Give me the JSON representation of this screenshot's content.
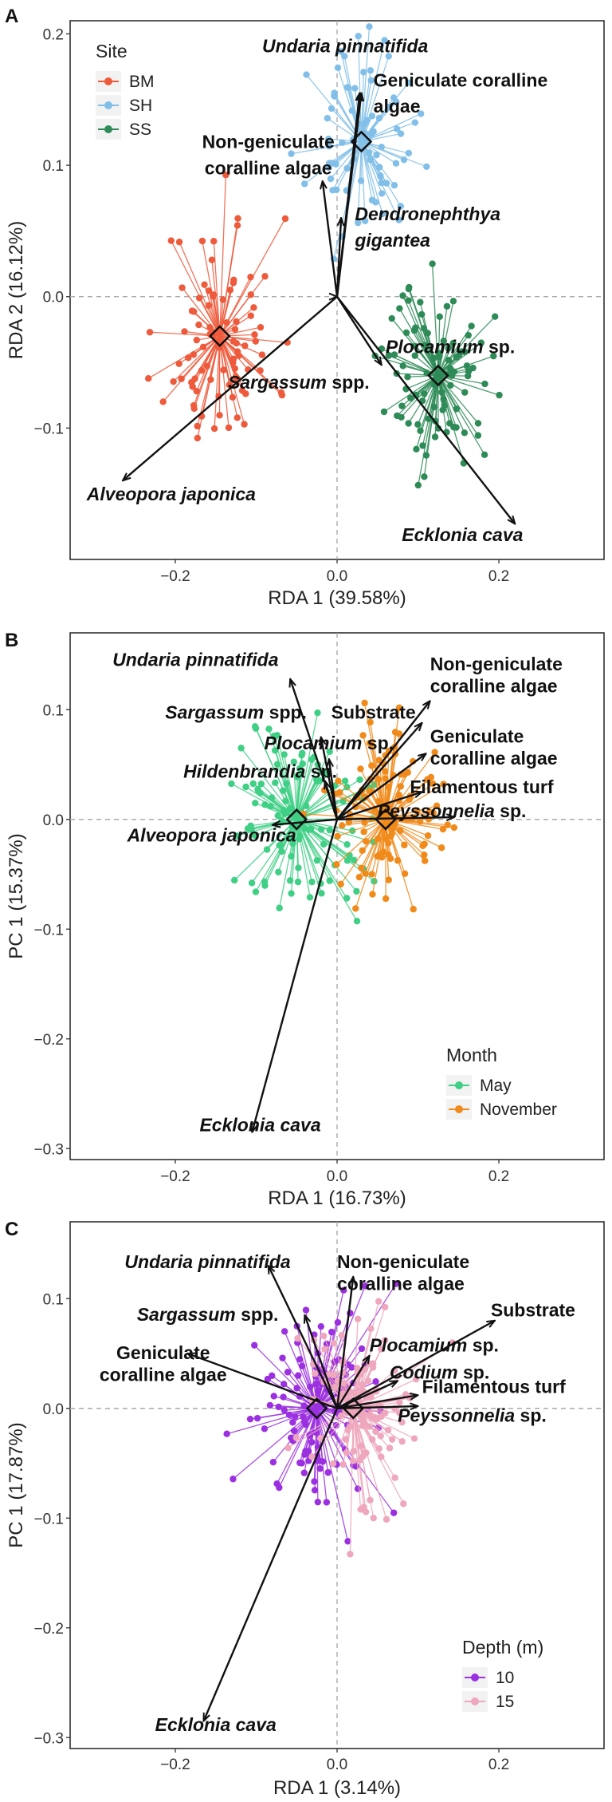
{
  "figure": {
    "panel_labels": [
      "A",
      "B",
      "C"
    ]
  },
  "chart_data": [
    {
      "panel": "A",
      "type": "scatter",
      "subtype": "RDA biplot with site spiders",
      "xlabel": "RDA 1 (39.58%)",
      "ylabel": "RDA 2 (16.12%)",
      "xlim": [
        -0.33,
        0.33
      ],
      "ylim": [
        -0.2,
        0.21
      ],
      "xticks": [
        -0.2,
        0.0,
        0.2
      ],
      "yticks": [
        -0.1,
        0.0,
        0.1,
        0.2
      ],
      "xtick_labels": [
        "−0.2",
        "0.0",
        "0.2"
      ],
      "ytick_labels": [
        "−0.1",
        "0.0",
        "0.1",
        "0.2"
      ],
      "legend": {
        "title": "Site",
        "position": "top-left",
        "entries": [
          "BM",
          "SH",
          "SS"
        ],
        "colors": [
          "#ee5a3c",
          "#82bfe8",
          "#2e8b57"
        ]
      },
      "groups": [
        {
          "name": "BM",
          "color": "#ee5a3c",
          "centroid": [
            -0.145,
            -0.03
          ],
          "spread": [
            0.035,
            0.045
          ],
          "n": 90,
          "seed": 11
        },
        {
          "name": "SH",
          "color": "#82bfe8",
          "centroid": [
            0.03,
            0.118
          ],
          "spread": [
            0.032,
            0.035
          ],
          "n": 80,
          "seed": 23
        },
        {
          "name": "SS",
          "color": "#2e8b57",
          "centroid": [
            0.125,
            -0.06
          ],
          "spread": [
            0.033,
            0.035
          ],
          "n": 95,
          "seed": 37
        }
      ],
      "arrows": [
        {
          "segments": [
            {
              "text": "Undaria pinnatifida",
              "italic": true
            }
          ],
          "xy": [
            0.028,
            0.155
          ],
          "label_xy": [
            0.01,
            0.186
          ],
          "anchor": "middle"
        },
        {
          "segments": [
            {
              "text": "Geniculate coralline",
              "italic": false
            }
          ],
          "xy": [
            0.03,
            0.155
          ],
          "label_xy": [
            0.045,
            0.16
          ],
          "anchor": "start"
        },
        {
          "segments": [
            {
              "text": "algae",
              "italic": false
            }
          ],
          "xy": null,
          "label_xy": [
            0.045,
            0.14
          ],
          "anchor": "start"
        },
        {
          "segments": [
            {
              "text": "Non-geniculate",
              "italic": false
            }
          ],
          "xy": [
            -0.018,
            0.088
          ],
          "label_xy": [
            -0.085,
            0.113
          ],
          "anchor": "middle"
        },
        {
          "segments": [
            {
              "text": "coralline algae",
              "italic": false
            }
          ],
          "xy": null,
          "label_xy": [
            -0.085,
            0.093
          ],
          "anchor": "middle"
        },
        {
          "segments": [
            {
              "text": "Dendronephthya",
              "italic": true
            }
          ],
          "xy": [
            0.005,
            0.06
          ],
          "label_xy": [
            0.022,
            0.058
          ],
          "anchor": "start"
        },
        {
          "segments": [
            {
              "text": "gigantea",
              "italic": true
            }
          ],
          "xy": null,
          "label_xy": [
            0.022,
            0.038
          ],
          "anchor": "start"
        },
        {
          "segments": [
            {
              "text": "Plocamium",
              "italic": true
            },
            {
              "text": " sp.",
              "italic": false
            }
          ],
          "xy": [
            0.055,
            -0.052
          ],
          "label_xy": [
            0.06,
            -0.043
          ],
          "anchor": "start"
        },
        {
          "segments": [
            {
              "text": "Sargassum",
              "italic": true
            },
            {
              "text": " spp.",
              "italic": false
            }
          ],
          "xy": [
            0.0,
            0.0
          ],
          "label_xy": [
            -0.135,
            -0.07
          ],
          "anchor": "start"
        },
        {
          "segments": [
            {
              "text": "Alveopora japonica",
              "italic": true
            }
          ],
          "xy": [
            -0.265,
            -0.14
          ],
          "label_xy": [
            -0.205,
            -0.155
          ],
          "anchor": "middle"
        },
        {
          "segments": [
            {
              "text": "Ecklonia cava",
              "italic": true
            }
          ],
          "xy": [
            0.22,
            -0.173
          ],
          "label_xy": [
            0.155,
            -0.186
          ],
          "anchor": "middle"
        }
      ]
    },
    {
      "panel": "B",
      "type": "scatter",
      "subtype": "RDA biplot with month spiders",
      "xlabel": "RDA 1 (16.73%)",
      "ylabel": "PC 1 (15.37%)",
      "xlim": [
        -0.33,
        0.33
      ],
      "ylim": [
        -0.31,
        0.17
      ],
      "xticks": [
        -0.2,
        0.0,
        0.2
      ],
      "yticks": [
        -0.3,
        -0.2,
        -0.1,
        0.0,
        0.1
      ],
      "xtick_labels": [
        "−0.2",
        "0.0",
        "0.2"
      ],
      "ytick_labels": [
        "−0.3",
        "−0.2",
        "−0.1",
        "0.0",
        "0.1"
      ],
      "legend": {
        "title": "Month",
        "position": "bottom-right",
        "entries": [
          "May",
          "November"
        ],
        "colors": [
          "#3fcf85",
          "#f08a1a"
        ]
      },
      "groups": [
        {
          "name": "May",
          "color": "#3fcf85",
          "centroid": [
            -0.05,
            0.0
          ],
          "spread": [
            0.048,
            0.045
          ],
          "n": 110,
          "seed": 51
        },
        {
          "name": "November",
          "color": "#f08a1a",
          "centroid": [
            0.06,
            0.0
          ],
          "spread": [
            0.035,
            0.04
          ],
          "n": 110,
          "seed": 67
        }
      ],
      "arrows": [
        {
          "segments": [
            {
              "text": "Undaria pinnatifida",
              "italic": true
            }
          ],
          "xy": [
            -0.058,
            0.128
          ],
          "label_xy": [
            -0.175,
            0.14
          ],
          "anchor": "middle"
        },
        {
          "segments": [
            {
              "text": "Non-geniculate",
              "italic": false
            }
          ],
          "xy": [
            0.115,
            0.108
          ],
          "label_xy": [
            0.115,
            0.136
          ],
          "anchor": "start"
        },
        {
          "segments": [
            {
              "text": "coralline algae",
              "italic": false
            }
          ],
          "xy": null,
          "label_xy": [
            0.115,
            0.116
          ],
          "anchor": "start"
        },
        {
          "segments": [
            {
              "text": "Sargassum",
              "italic": true
            },
            {
              "text": " spp.",
              "italic": false
            }
          ],
          "xy": [
            -0.02,
            0.075
          ],
          "label_xy": [
            -0.125,
            0.092
          ],
          "anchor": "middle"
        },
        {
          "segments": [
            {
              "text": "Substrate",
              "italic": false
            }
          ],
          "xy": [
            0.105,
            0.088
          ],
          "label_xy": [
            0.045,
            0.092
          ],
          "anchor": "middle"
        },
        {
          "segments": [
            {
              "text": "Plocamium",
              "italic": true
            },
            {
              "text": " sp.",
              "italic": false
            }
          ],
          "xy": [
            -0.01,
            0.055
          ],
          "label_xy": [
            -0.01,
            0.064
          ],
          "anchor": "middle"
        },
        {
          "segments": [
            {
              "text": "Geniculate",
              "italic": false
            }
          ],
          "xy": [
            0.11,
            0.06
          ],
          "label_xy": [
            0.115,
            0.07
          ],
          "anchor": "start"
        },
        {
          "segments": [
            {
              "text": "coralline algae",
              "italic": false
            }
          ],
          "xy": null,
          "label_xy": [
            0.115,
            0.05
          ],
          "anchor": "start"
        },
        {
          "segments": [
            {
              "text": "Hildenbrandia",
              "italic": true
            },
            {
              "text": " sp.",
              "italic": false
            }
          ],
          "xy": [
            -0.015,
            0.035
          ],
          "label_xy": [
            -0.095,
            0.038
          ],
          "anchor": "middle"
        },
        {
          "segments": [
            {
              "text": "Filamentous turf",
              "italic": false
            }
          ],
          "xy": [
            0.105,
            0.025
          ],
          "label_xy": [
            0.09,
            0.024
          ],
          "anchor": "start"
        },
        {
          "segments": [
            {
              "text": "Alveopora japonica",
              "italic": true
            }
          ],
          "xy": [
            -0.08,
            -0.005
          ],
          "label_xy": [
            -0.155,
            -0.02
          ],
          "anchor": "middle"
        },
        {
          "segments": [
            {
              "text": "Peyssonnelia",
              "italic": true
            },
            {
              "text": " sp.",
              "italic": false
            }
          ],
          "xy": [
            0.145,
            0.002
          ],
          "label_xy": [
            0.05,
            0.002
          ],
          "anchor": "start"
        },
        {
          "segments": [
            {
              "text": "Ecklonia cava",
              "italic": true
            }
          ],
          "xy": [
            -0.105,
            -0.285
          ],
          "label_xy": [
            -0.095,
            -0.284
          ],
          "anchor": "middle"
        }
      ]
    },
    {
      "panel": "C",
      "type": "scatter",
      "subtype": "RDA biplot with depth spiders",
      "xlabel": "RDA 1 (3.14%)",
      "ylabel": "PC 1 (17.87%)",
      "xlim": [
        -0.33,
        0.33
      ],
      "ylim": [
        -0.31,
        0.17
      ],
      "xticks": [
        -0.2,
        0.0,
        0.2
      ],
      "yticks": [
        -0.3,
        -0.2,
        -0.1,
        0.0,
        0.1
      ],
      "xtick_labels": [
        "−0.2",
        "0.0",
        "0.2"
      ],
      "ytick_labels": [
        "−0.3",
        "−0.2",
        "−0.1",
        "0.0",
        "0.1"
      ],
      "legend": {
        "title": "Depth (m)",
        "position": "bottom-right",
        "entries": [
          "10",
          "15"
        ],
        "colors": [
          "#9b30e0",
          "#eea7bc"
        ]
      },
      "groups": [
        {
          "name": "10",
          "color": "#9b30e0",
          "centroid": [
            -0.025,
            0.0
          ],
          "spread": [
            0.04,
            0.045
          ],
          "n": 120,
          "seed": 83
        },
        {
          "name": "15",
          "color": "#eea7bc",
          "centroid": [
            0.02,
            0.0
          ],
          "spread": [
            0.04,
            0.045
          ],
          "n": 120,
          "seed": 97
        }
      ],
      "arrows": [
        {
          "segments": [
            {
              "text": "Undaria pinnatifida",
              "italic": true
            }
          ],
          "xy": [
            -0.085,
            0.13
          ],
          "label_xy": [
            -0.16,
            0.128
          ],
          "anchor": "middle"
        },
        {
          "segments": [
            {
              "text": "Non-geniculate",
              "italic": false
            }
          ],
          "xy": [
            0.02,
            0.12
          ],
          "label_xy": [
            0.0,
            0.128
          ],
          "anchor": "start"
        },
        {
          "segments": [
            {
              "text": "coralline algae",
              "italic": false
            }
          ],
          "xy": null,
          "label_xy": [
            0.0,
            0.108
          ],
          "anchor": "start"
        },
        {
          "segments": [
            {
              "text": "Sargassum",
              "italic": true
            },
            {
              "text": " spp.",
              "italic": false
            }
          ],
          "xy": [
            -0.04,
            0.085
          ],
          "label_xy": [
            -0.16,
            0.08
          ],
          "anchor": "middle"
        },
        {
          "segments": [
            {
              "text": "Substrate",
              "italic": false
            }
          ],
          "xy": [
            0.195,
            0.08
          ],
          "label_xy": [
            0.19,
            0.084
          ],
          "anchor": "start"
        },
        {
          "segments": [
            {
              "text": "Plocamium",
              "italic": true
            },
            {
              "text": " sp.",
              "italic": false
            }
          ],
          "xy": [
            0.04,
            0.048
          ],
          "label_xy": [
            0.04,
            0.052
          ],
          "anchor": "start"
        },
        {
          "segments": [
            {
              "text": "Geniculate",
              "italic": false
            }
          ],
          "xy": [
            -0.185,
            0.05
          ],
          "label_xy": [
            -0.215,
            0.045
          ],
          "anchor": "middle"
        },
        {
          "segments": [
            {
              "text": "coralline algae",
              "italic": false
            }
          ],
          "xy": null,
          "label_xy": [
            -0.215,
            0.025
          ],
          "anchor": "middle"
        },
        {
          "segments": [
            {
              "text": "Codium",
              "italic": true
            },
            {
              "text": " sp.",
              "italic": false
            }
          ],
          "xy": [
            0.075,
            0.025
          ],
          "label_xy": [
            0.065,
            0.027
          ],
          "anchor": "start"
        },
        {
          "segments": [
            {
              "text": "Filamentous turf",
              "italic": false
            }
          ],
          "xy": [
            0.1,
            0.012
          ],
          "label_xy": [
            0.105,
            0.014
          ],
          "anchor": "start"
        },
        {
          "segments": [
            {
              "text": "Peyssonnelia",
              "italic": true
            },
            {
              "text": " sp.",
              "italic": false
            }
          ],
          "xy": [
            0.1,
            0.002
          ],
          "label_xy": [
            0.075,
            -0.012
          ],
          "anchor": "start"
        },
        {
          "segments": [
            {
              "text": "Ecklonia cava",
              "italic": true
            }
          ],
          "xy": [
            -0.165,
            -0.285
          ],
          "label_xy": [
            -0.15,
            -0.294
          ],
          "anchor": "middle"
        }
      ]
    }
  ]
}
